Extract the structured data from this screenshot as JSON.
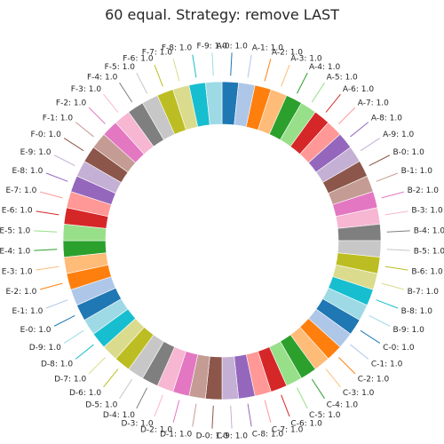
{
  "chart_data": {
    "type": "pie",
    "title": "60 equal. Strategy: remove LAST",
    "start_angle_deg": 90,
    "direction": "clockwise",
    "hole": "donut",
    "label_format": "{label}: {value}",
    "slices": [
      {
        "label": "A-0",
        "value": "1.0",
        "color": "#1f77b4"
      },
      {
        "label": "A-1",
        "value": "1.0",
        "color": "#aec7e8"
      },
      {
        "label": "A-2",
        "value": "1.0",
        "color": "#ff7f0e"
      },
      {
        "label": "A-3",
        "value": "1.0",
        "color": "#ffbb78"
      },
      {
        "label": "A-4",
        "value": "1.0",
        "color": "#2ca02c"
      },
      {
        "label": "A-5",
        "value": "1.0",
        "color": "#98df8a"
      },
      {
        "label": "A-6",
        "value": "1.0",
        "color": "#d62728"
      },
      {
        "label": "A-7",
        "value": "1.0",
        "color": "#ff9896"
      },
      {
        "label": "A-8",
        "value": "1.0",
        "color": "#9467bd"
      },
      {
        "label": "A-9",
        "value": "1.0",
        "color": "#c5b0d5"
      },
      {
        "label": "B-0",
        "value": "1.0",
        "color": "#8c564b"
      },
      {
        "label": "B-1",
        "value": "1.0",
        "color": "#c49c94"
      },
      {
        "label": "B-2",
        "value": "1.0",
        "color": "#e377c2"
      },
      {
        "label": "B-3",
        "value": "1.0",
        "color": "#f7b6d2"
      },
      {
        "label": "B-4",
        "value": "1.0",
        "color": "#7f7f7f"
      },
      {
        "label": "B-5",
        "value": "1.0",
        "color": "#c7c7c7"
      },
      {
        "label": "B-6",
        "value": "1.0",
        "color": "#bcbd22"
      },
      {
        "label": "B-7",
        "value": "1.0",
        "color": "#dbdb8d"
      },
      {
        "label": "B-8",
        "value": "1.0",
        "color": "#17becf"
      },
      {
        "label": "B-9",
        "value": "1.0",
        "color": "#9edae5"
      },
      {
        "label": "C-0",
        "value": "1.0",
        "color": "#1f77b4"
      },
      {
        "label": "C-1",
        "value": "1.0",
        "color": "#aec7e8"
      },
      {
        "label": "C-2",
        "value": "1.0",
        "color": "#ff7f0e"
      },
      {
        "label": "C-3",
        "value": "1.0",
        "color": "#ffbb78"
      },
      {
        "label": "C-4",
        "value": "1.0",
        "color": "#2ca02c"
      },
      {
        "label": "C-5",
        "value": "1.0",
        "color": "#98df8a"
      },
      {
        "label": "C-6",
        "value": "1.0",
        "color": "#d62728"
      },
      {
        "label": "C-7",
        "value": "1.0",
        "color": "#ff9896"
      },
      {
        "label": "C-8",
        "value": "1.0",
        "color": "#9467bd"
      },
      {
        "label": "C-9",
        "value": "1.0",
        "color": "#c5b0d5"
      },
      {
        "label": "D-0",
        "value": "1.0",
        "color": "#8c564b"
      },
      {
        "label": "D-1",
        "value": "1.0",
        "color": "#c49c94"
      },
      {
        "label": "D-2",
        "value": "1.0",
        "color": "#e377c2"
      },
      {
        "label": "D-3",
        "value": "1.0",
        "color": "#f7b6d2"
      },
      {
        "label": "D-4",
        "value": "1.0",
        "color": "#7f7f7f"
      },
      {
        "label": "D-5",
        "value": "1.0",
        "color": "#c7c7c7"
      },
      {
        "label": "D-6",
        "value": "1.0",
        "color": "#bcbd22"
      },
      {
        "label": "D-7",
        "value": "1.0",
        "color": "#dbdb8d"
      },
      {
        "label": "D-8",
        "value": "1.0",
        "color": "#17becf"
      },
      {
        "label": "D-9",
        "value": "1.0",
        "color": "#9edae5"
      },
      {
        "label": "E-0",
        "value": "1.0",
        "color": "#1f77b4"
      },
      {
        "label": "E-1",
        "value": "1.0",
        "color": "#aec7e8"
      },
      {
        "label": "E-2",
        "value": "1.0",
        "color": "#ff7f0e"
      },
      {
        "label": "E-3",
        "value": "1.0",
        "color": "#ffbb78"
      },
      {
        "label": "E-4",
        "value": "1.0",
        "color": "#2ca02c"
      },
      {
        "label": "E-5",
        "value": "1.0",
        "color": "#98df8a"
      },
      {
        "label": "E-6",
        "value": "1.0",
        "color": "#d62728"
      },
      {
        "label": "E-7",
        "value": "1.0",
        "color": "#ff9896"
      },
      {
        "label": "E-8",
        "value": "1.0",
        "color": "#9467bd"
      },
      {
        "label": "E-9",
        "value": "1.0",
        "color": "#c5b0d5"
      },
      {
        "label": "F-0",
        "value": "1.0",
        "color": "#8c564b"
      },
      {
        "label": "F-1",
        "value": "1.0",
        "color": "#c49c94"
      },
      {
        "label": "F-2",
        "value": "1.0",
        "color": "#e377c2"
      },
      {
        "label": "F-3",
        "value": "1.0",
        "color": "#f7b6d2"
      },
      {
        "label": "F-4",
        "value": "1.0",
        "color": "#7f7f7f"
      },
      {
        "label": "F-5",
        "value": "1.0",
        "color": "#c7c7c7"
      },
      {
        "label": "F-6",
        "value": "1.0",
        "color": "#bcbd22"
      },
      {
        "label": "F-7",
        "value": "1.0",
        "color": "#dbdb8d"
      },
      {
        "label": "F-8",
        "value": "1.0",
        "color": "#17becf"
      },
      {
        "label": "F-9",
        "value": "1.0",
        "color": "#9edae5"
      }
    ]
  }
}
